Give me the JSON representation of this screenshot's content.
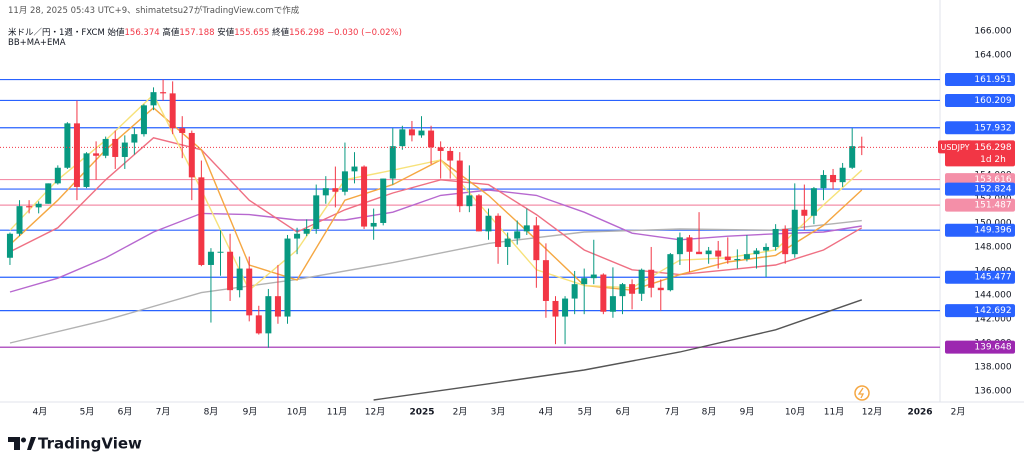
{
  "header": {
    "timestamp": "11月 28, 2025 05:43 UTC+9、shimatetsu27がTradingView.comで作成",
    "symbol": "米ドル／円・1週・FXCM",
    "ohlc": [
      {
        "label": "始値",
        "value": 156.374
      },
      {
        "label": "高値",
        "value": 157.188
      },
      {
        "label": "安値",
        "value": 155.655
      },
      {
        "label": "終値",
        "value": 156.298
      }
    ],
    "change": "−0.030 (−0.02%)",
    "indicator": "BB+MA+EMA"
  },
  "chart_data": {
    "type": "candlestick",
    "up_color": "#089981",
    "down_color": "#f23645",
    "open": [
      147.1,
      149.1,
      151.4,
      151.3,
      151.6,
      153.3,
      154.6,
      158.3,
      153.0,
      155.8,
      155.6,
      157.0,
      155.5,
      156.7,
      157.4,
      159.8,
      160.9,
      160.8,
      157.9,
      157.5,
      153.8,
      146.5,
      147.6,
      147.6,
      144.4,
      146.2,
      142.3,
      140.8,
      143.9,
      142.2,
      148.7,
      149.1,
      149.5,
      152.3,
      152.9,
      152.6,
      154.3,
      154.7,
      149.7,
      150.0,
      153.7,
      156.4,
      157.8,
      157.3,
      157.7,
      156.3,
      156.0,
      155.2,
      151.4,
      152.3,
      149.3,
      150.6,
      148.0,
      148.7,
      149.3,
      149.8,
      146.9,
      143.5,
      142.2,
      143.7,
      144.9,
      145.4,
      145.7,
      142.6,
      143.9,
      144.9,
      144.1,
      146.1,
      144.6,
      144.4,
      147.4,
      148.8,
      147.6,
      147.4,
      147.7,
      147.2,
      146.9,
      147.0,
      147.4,
      147.7,
      148.0,
      149.5,
      147.4,
      151.1,
      150.6,
      152.9,
      154.0,
      153.4,
      154.6,
      156.374
    ],
    "high": [
      149.2,
      151.9,
      151.9,
      151.8,
      153.3,
      154.8,
      158.4,
      160.2,
      155.9,
      156.8,
      157.2,
      157.7,
      157.3,
      157.9,
      159.9,
      161.3,
      161.95,
      161.8,
      158.9,
      157.7,
      155.2,
      147.9,
      149.4,
      149.1,
      147.2,
      147.2,
      143.1,
      144.5,
      146.5,
      149.0,
      149.6,
      150.3,
      153.2,
      153.9,
      154.7,
      156.7,
      155.9,
      154.8,
      151.2,
      153.7,
      157.9,
      158.1,
      158.5,
      158.9,
      158.1,
      156.8,
      156.3,
      155.9,
      154.8,
      152.4,
      151.2,
      150.8,
      149.2,
      150.2,
      151.2,
      150.5,
      148.3,
      143.9,
      143.9,
      146.0,
      146.2,
      148.6,
      145.8,
      146.3,
      145.0,
      145.3,
      146.2,
      148.0,
      145.3,
      147.5,
      149.2,
      149.0,
      150.9,
      148.0,
      148.5,
      148.8,
      147.8,
      149.0,
      147.9,
      148.3,
      149.9,
      149.8,
      153.3,
      153.2,
      153.0,
      154.4,
      154.5,
      155.0,
      157.9,
      157.188
    ],
    "low": [
      146.5,
      148.9,
      150.8,
      150.8,
      151.6,
      153.2,
      154.5,
      151.9,
      152.9,
      153.6,
      155.4,
      154.5,
      154.5,
      155.7,
      157.2,
      159.4,
      160.2,
      157.4,
      155.4,
      151.9,
      146.4,
      141.7,
      145.6,
      143.5,
      143.8,
      141.8,
      140.7,
      139.6,
      141.6,
      141.6,
      147.4,
      148.9,
      149.1,
      151.6,
      151.3,
      152.3,
      153.3,
      149.5,
      148.6,
      149.8,
      153.2,
      156.1,
      156.8,
      157.1,
      154.9,
      153.7,
      153.7,
      150.9,
      150.9,
      149.3,
      148.6,
      146.6,
      146.5,
      148.2,
      149.0,
      144.6,
      142.1,
      139.9,
      139.9,
      142.4,
      142.4,
      144.9,
      142.4,
      142.1,
      142.4,
      142.8,
      143.5,
      143.8,
      142.7,
      144.3,
      146.5,
      145.9,
      147.5,
      146.6,
      146.2,
      146.6,
      146.2,
      146.8,
      146.2,
      145.5,
      147.7,
      146.6,
      147.1,
      149.4,
      149.9,
      151.9,
      152.8,
      153.0,
      154.5,
      155.655
    ],
    "close": [
      149.1,
      151.4,
      151.3,
      151.6,
      153.3,
      154.6,
      158.3,
      153.0,
      155.8,
      155.6,
      157.0,
      155.5,
      156.7,
      157.4,
      159.8,
      160.9,
      160.8,
      157.9,
      157.5,
      153.8,
      146.5,
      147.6,
      147.6,
      144.4,
      146.2,
      142.3,
      140.8,
      143.9,
      142.2,
      148.7,
      149.1,
      149.5,
      152.3,
      152.9,
      152.6,
      154.3,
      154.7,
      149.7,
      150.0,
      153.7,
      156.4,
      157.8,
      157.3,
      157.7,
      156.3,
      156.0,
      155.2,
      151.4,
      152.3,
      149.3,
      150.6,
      148.0,
      148.7,
      149.3,
      149.8,
      146.9,
      143.5,
      142.2,
      143.7,
      144.9,
      145.4,
      145.7,
      142.6,
      143.9,
      144.9,
      144.1,
      146.1,
      144.6,
      144.4,
      147.4,
      148.8,
      147.6,
      147.4,
      147.7,
      147.2,
      146.9,
      147.0,
      147.4,
      147.7,
      148.0,
      149.5,
      147.4,
      151.1,
      150.6,
      152.9,
      154.0,
      153.4,
      154.6,
      156.4,
      156.298
    ],
    "xlim": [
      -1.04,
      100.1
    ],
    "xticks": [
      {
        "value": 3.13,
        "label": "4月"
      },
      {
        "value": 8.05,
        "label": "5月"
      },
      {
        "value": 12.02,
        "label": "6月"
      },
      {
        "value": 15.99,
        "label": "7月"
      },
      {
        "value": 21.0,
        "label": "8月"
      },
      {
        "value": 25.08,
        "label": "9月"
      },
      {
        "value": 29.99,
        "label": "10月"
      },
      {
        "value": 34.17,
        "label": "11月"
      },
      {
        "value": 38.14,
        "label": "12月"
      },
      {
        "value": 43.05,
        "label": "2025"
      },
      {
        "value": 47.02,
        "label": "2月"
      },
      {
        "value": 50.99,
        "label": "3月"
      },
      {
        "value": 56.01,
        "label": "4月"
      },
      {
        "value": 60.08,
        "label": "5月"
      },
      {
        "value": 64.05,
        "label": "6月"
      },
      {
        "value": 69.17,
        "label": "7月"
      },
      {
        "value": 73.04,
        "label": "8月"
      },
      {
        "value": 77.01,
        "label": "9月"
      },
      {
        "value": 82.03,
        "label": "10月"
      },
      {
        "value": 86.1,
        "label": "11月"
      },
      {
        "value": 90.07,
        "label": "12月"
      },
      {
        "value": 95.09,
        "label": "2026"
      },
      {
        "value": 99.06,
        "label": "2月"
      }
    ],
    "ylim": [
      135.08,
      168.58
    ],
    "yticks": [
      {
        "value": 136,
        "label": "136.000"
      },
      {
        "value": 138,
        "label": "138.000"
      },
      {
        "value": 140,
        "label": "140.000"
      },
      {
        "value": 142,
        "label": "142.000"
      },
      {
        "value": 144,
        "label": "144.000"
      },
      {
        "value": 146,
        "label": "146.000"
      },
      {
        "value": 148,
        "label": "148.000"
      },
      {
        "value": 150,
        "label": "150.000"
      },
      {
        "value": 152,
        "label": "152.000"
      },
      {
        "value": 154,
        "label": "154.000"
      },
      {
        "value": 156,
        "label": "156.000"
      },
      {
        "value": 158,
        "label": "158.000"
      },
      {
        "value": 160,
        "label": "160.000"
      },
      {
        "value": 162,
        "label": "162.000"
      },
      {
        "value": 164,
        "label": "164.000"
      },
      {
        "value": 166,
        "label": "166.000"
      }
    ],
    "lines": [
      {
        "color": "#b2b2b2",
        "x": [
          0,
          10,
          20,
          30,
          40,
          50,
          60,
          70,
          80,
          89
        ],
        "values": [
          140.0,
          141.9,
          144.2,
          145.3,
          146.7,
          148.3,
          149.25,
          149.5,
          149.4,
          150.2
        ]
      },
      {
        "color": "#555555",
        "x": [
          38,
          50,
          60,
          70,
          80,
          89
        ],
        "values": [
          135.25,
          136.6,
          137.75,
          139.25,
          141.1,
          143.6
        ]
      },
      {
        "color": "#b768cf",
        "x": [
          0,
          5,
          10,
          15,
          20,
          25,
          30,
          35,
          40,
          45,
          50,
          55,
          60,
          65,
          70,
          75,
          80,
          85,
          89
        ],
        "values": [
          144.25,
          145.4,
          147.1,
          149.25,
          150.8,
          150.7,
          150.25,
          150.25,
          150.9,
          152.3,
          152.75,
          152.3,
          150.9,
          149.15,
          148.6,
          148.9,
          149.1,
          149.25,
          149.75
        ]
      },
      {
        "color": "#ef7083",
        "x": [
          0,
          5,
          10,
          15,
          20,
          25,
          30,
          35,
          40,
          45,
          50,
          55,
          60,
          65,
          70,
          75,
          80,
          85,
          89
        ],
        "values": [
          147.6,
          149.6,
          153.6,
          157.1,
          156.1,
          151.9,
          149.25,
          151.1,
          152.5,
          153.6,
          153.2,
          150.7,
          147.75,
          146.1,
          145.7,
          146.1,
          146.5,
          147.75,
          149.6
        ]
      },
      {
        "color": "#f5a742",
        "x": [
          0,
          5,
          10,
          15,
          20,
          25,
          30,
          35,
          40,
          45,
          50,
          55,
          60,
          65,
          70,
          75,
          80,
          85,
          89
        ],
        "values": [
          148.2,
          151.9,
          156.1,
          159.6,
          156.1,
          146.5,
          145.25,
          151.9,
          153.2,
          155.25,
          152.3,
          148.6,
          144.8,
          144.4,
          145.7,
          146.75,
          147.3,
          149.8,
          152.75
        ]
      },
      {
        "color": "#f7e27a",
        "x": [
          0,
          5,
          10,
          15,
          20,
          25,
          30,
          35,
          40,
          45,
          50,
          55,
          60,
          65,
          70,
          75,
          80,
          85,
          89
        ],
        "values": [
          149.4,
          153.6,
          156.9,
          160.7,
          152.75,
          144.4,
          147.75,
          153.6,
          154.4,
          155.25,
          150.7,
          146.1,
          144.8,
          144.6,
          146.9,
          147.1,
          147.75,
          151.5,
          154.4
        ]
      }
    ],
    "levels": [
      {
        "value": 161.951,
        "color": "#2962ff"
      },
      {
        "value": 160.209,
        "color": "#2962ff"
      },
      {
        "value": 157.932,
        "color": "#2962ff"
      },
      {
        "value": 153.616,
        "color": "#f48fa8"
      },
      {
        "value": 152.824,
        "color": "#2962ff"
      },
      {
        "value": 151.487,
        "color": "#f48fa8"
      },
      {
        "value": 149.396,
        "color": "#2962ff"
      },
      {
        "value": 145.477,
        "color": "#2962ff"
      },
      {
        "value": 142.692,
        "color": "#2962ff"
      },
      {
        "value": 139.648,
        "color": "#9c27b0"
      }
    ],
    "last_price": {
      "symbol": "USDJPY",
      "value": 156.298,
      "countdown": "1d 2h",
      "color": "#f23645"
    }
  },
  "footer": {
    "brand": "TradingView"
  }
}
